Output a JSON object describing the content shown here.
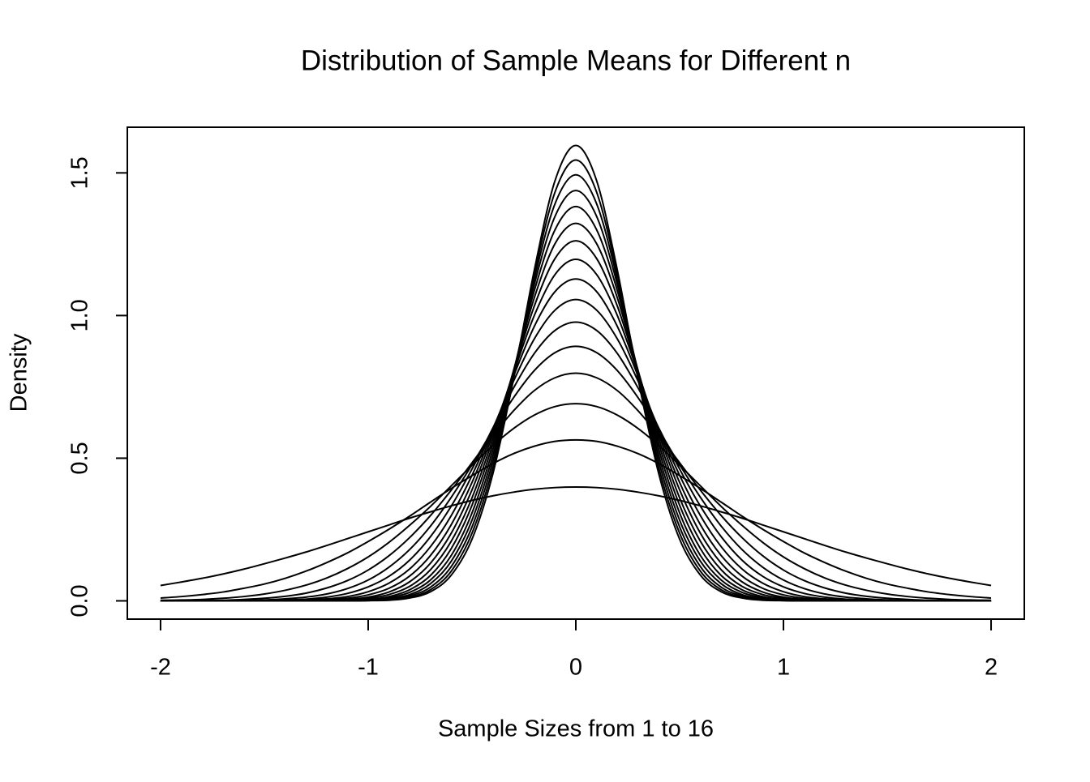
{
  "chart_data": {
    "type": "line",
    "title": "Distribution of Sample Means for Different n",
    "xlabel": "Sample Sizes from 1 to 16",
    "ylabel": "Density",
    "color": "#000000",
    "xlim": [
      -2.16,
      2.16
    ],
    "ylim": [
      -0.064,
      1.66
    ],
    "xticks": [
      -2,
      -1,
      0,
      1,
      2
    ],
    "yticks": [
      {
        "value": 0,
        "label": "0.0"
      },
      0.5,
      {
        "value": 1,
        "label": "1.0"
      },
      1.5
    ],
    "x": [
      -2,
      -1.9,
      -1.8,
      -1.7,
      -1.6,
      -1.5,
      -1.4,
      -1.3,
      -1.2,
      -1.1,
      -1,
      -0.9,
      -0.8,
      -0.7,
      -0.6,
      -0.5,
      -0.4,
      -0.3,
      -0.2,
      -0.1,
      0,
      0.1,
      0.2,
      0.3,
      0.4,
      0.5,
      0.6,
      0.7,
      0.8,
      0.9,
      1,
      1.1,
      1.2,
      1.3,
      1.4,
      1.5,
      1.6,
      1.7,
      1.8,
      1.9,
      2
    ],
    "series": [
      {
        "values": [
          0.054,
          0.066,
          0.079,
          0.094,
          0.111,
          0.13,
          0.15,
          0.171,
          0.194,
          0.218,
          0.242,
          0.266,
          0.29,
          0.312,
          0.333,
          0.352,
          0.368,
          0.381,
          0.391,
          0.397,
          0.399,
          0.397,
          0.391,
          0.381,
          0.368,
          0.352,
          0.333,
          0.312,
          0.29,
          0.266,
          0.242,
          0.218,
          0.194,
          0.171,
          0.15,
          0.13,
          0.111,
          0.094,
          0.079,
          0.066,
          0.054
        ]
      },
      {
        "values": [
          0.01,
          0.015,
          0.022,
          0.031,
          0.044,
          0.059,
          0.079,
          0.104,
          0.134,
          0.168,
          0.208,
          0.251,
          0.297,
          0.346,
          0.394,
          0.439,
          0.481,
          0.516,
          0.542,
          0.559,
          0.564,
          0.559,
          0.542,
          0.516,
          0.481,
          0.439,
          0.394,
          0.346,
          0.297,
          0.251,
          0.208,
          0.168,
          0.134,
          0.104,
          0.079,
          0.059,
          0.044,
          0.031,
          0.022,
          0.015,
          0.01
        ]
      },
      {
        "values": [
          0.002,
          0.003,
          0.005,
          0.009,
          0.015,
          0.024,
          0.037,
          0.055,
          0.08,
          0.113,
          0.154,
          0.205,
          0.265,
          0.331,
          0.403,
          0.475,
          0.544,
          0.604,
          0.651,
          0.681,
          0.691,
          0.681,
          0.651,
          0.604,
          0.544,
          0.475,
          0.403,
          0.331,
          0.265,
          0.205,
          0.154,
          0.113,
          0.08,
          0.055,
          0.037,
          0.024,
          0.015,
          0.009,
          0.005,
          0.003,
          0.002
        ]
      },
      {
        "values": [
          0,
          0.001,
          0.001,
          0.002,
          0.005,
          0.009,
          0.016,
          0.027,
          0.045,
          0.071,
          0.108,
          0.158,
          0.222,
          0.299,
          0.388,
          0.484,
          0.579,
          0.666,
          0.737,
          0.782,
          0.798,
          0.782,
          0.737,
          0.666,
          0.579,
          0.484,
          0.388,
          0.299,
          0.222,
          0.158,
          0.108,
          0.071,
          0.045,
          0.027,
          0.016,
          0.009,
          0.005,
          0.002,
          0.001,
          0.001,
          0
        ]
      },
      {
        "values": [
          0,
          0,
          0,
          0.001,
          0.001,
          0.003,
          0.007,
          0.013,
          0.024,
          0.043,
          0.073,
          0.118,
          0.18,
          0.262,
          0.363,
          0.477,
          0.598,
          0.712,
          0.807,
          0.87,
          0.892,
          0.87,
          0.807,
          0.712,
          0.598,
          0.477,
          0.363,
          0.262,
          0.18,
          0.118,
          0.073,
          0.043,
          0.024,
          0.013,
          0.007,
          0.003,
          0.001,
          0.001,
          0,
          0,
          0
        ]
      },
      {
        "values": [
          0,
          0,
          0,
          0,
          0,
          0.001,
          0.003,
          0.006,
          0.013,
          0.026,
          0.049,
          0.086,
          0.143,
          0.225,
          0.332,
          0.462,
          0.605,
          0.746,
          0.867,
          0.948,
          0.977,
          0.948,
          0.867,
          0.746,
          0.605,
          0.462,
          0.332,
          0.225,
          0.143,
          0.086,
          0.049,
          0.026,
          0.013,
          0.006,
          0.003,
          0.001,
          0,
          0,
          0,
          0,
          0
        ]
      },
      {
        "values": [
          0,
          0,
          0,
          0,
          0,
          0,
          0.001,
          0.003,
          0.007,
          0.015,
          0.032,
          0.062,
          0.112,
          0.19,
          0.299,
          0.44,
          0.603,
          0.77,
          0.918,
          1.019,
          1.056,
          1.019,
          0.918,
          0.77,
          0.603,
          0.44,
          0.299,
          0.19,
          0.112,
          0.062,
          0.032,
          0.015,
          0.007,
          0.003,
          0.001,
          0,
          0,
          0,
          0,
          0,
          0
        ]
      },
      {
        "values": [
          0,
          0,
          0,
          0,
          0,
          0,
          0,
          0.001,
          0.004,
          0.009,
          0.021,
          0.044,
          0.087,
          0.159,
          0.267,
          0.415,
          0.595,
          0.787,
          0.962,
          1.084,
          1.128,
          1.084,
          0.962,
          0.787,
          0.595,
          0.415,
          0.267,
          0.159,
          0.087,
          0.044,
          0.021,
          0.009,
          0.004,
          0.001,
          0,
          0,
          0,
          0,
          0,
          0,
          0
        ]
      },
      {
        "values": [
          0,
          0,
          0,
          0,
          0,
          0,
          0,
          0.001,
          0.002,
          0.005,
          0.013,
          0.031,
          0.067,
          0.132,
          0.237,
          0.389,
          0.583,
          0.798,
          1.0,
          1.144,
          1.197,
          1.144,
          1.0,
          0.798,
          0.583,
          0.389,
          0.237,
          0.132,
          0.067,
          0.031,
          0.013,
          0.005,
          0.002,
          0.001,
          0,
          0,
          0,
          0,
          0,
          0,
          0
        ]
      },
      {
        "values": [
          0,
          0,
          0,
          0,
          0,
          0,
          0,
          0,
          0.001,
          0.003,
          0.009,
          0.022,
          0.051,
          0.109,
          0.209,
          0.361,
          0.567,
          0.804,
          1.033,
          1.2,
          1.262,
          1.2,
          1.033,
          0.804,
          0.567,
          0.361,
          0.209,
          0.109,
          0.051,
          0.022,
          0.009,
          0.003,
          0.001,
          0,
          0,
          0,
          0,
          0,
          0,
          0,
          0
        ]
      },
      {
        "values": [
          0,
          0,
          0,
          0,
          0,
          0,
          0,
          0,
          0,
          0.002,
          0.005,
          0.015,
          0.039,
          0.089,
          0.183,
          0.335,
          0.549,
          0.807,
          1.062,
          1.252,
          1.323,
          1.252,
          1.062,
          0.807,
          0.549,
          0.335,
          0.183,
          0.089,
          0.039,
          0.015,
          0.005,
          0.002,
          0,
          0,
          0,
          0,
          0,
          0,
          0,
          0,
          0
        ]
      },
      {
        "values": [
          0,
          0,
          0,
          0,
          0,
          0,
          0,
          0,
          0,
          0.001,
          0.003,
          0.011,
          0.03,
          0.073,
          0.159,
          0.308,
          0.529,
          0.805,
          1.087,
          1.301,
          1.382,
          1.301,
          1.087,
          0.805,
          0.529,
          0.308,
          0.159,
          0.073,
          0.03,
          0.011,
          0.003,
          0.001,
          0,
          0,
          0,
          0,
          0,
          0,
          0,
          0,
          0
        ]
      },
      {
        "values": [
          0,
          0,
          0,
          0,
          0,
          0,
          0,
          0,
          0,
          0.001,
          0.002,
          0.007,
          0.022,
          0.06,
          0.139,
          0.283,
          0.508,
          0.801,
          1.109,
          1.348,
          1.438,
          1.348,
          1.109,
          0.801,
          0.508,
          0.283,
          0.139,
          0.06,
          0.022,
          0.007,
          0.002,
          0.001,
          0,
          0,
          0,
          0,
          0,
          0,
          0,
          0,
          0
        ]
      },
      {
        "values": [
          0,
          0,
          0,
          0,
          0,
          0,
          0,
          0,
          0,
          0,
          0.001,
          0.005,
          0.017,
          0.048,
          0.12,
          0.259,
          0.487,
          0.795,
          1.128,
          1.392,
          1.493,
          1.392,
          1.128,
          0.795,
          0.487,
          0.259,
          0.12,
          0.048,
          0.017,
          0.005,
          0.001,
          0,
          0,
          0,
          0,
          0,
          0,
          0,
          0,
          0,
          0
        ]
      },
      {
        "values": [
          0,
          0,
          0,
          0,
          0,
          0,
          0,
          0,
          0,
          0,
          0.001,
          0.004,
          0.013,
          0.039,
          0.104,
          0.237,
          0.465,
          0.787,
          1.145,
          1.433,
          1.545,
          1.433,
          1.145,
          0.787,
          0.465,
          0.237,
          0.104,
          0.039,
          0.013,
          0.004,
          0.001,
          0,
          0,
          0,
          0,
          0,
          0,
          0,
          0,
          0,
          0
        ]
      },
      {
        "values": [
          0,
          0,
          0,
          0,
          0,
          0,
          0,
          0,
          0,
          0,
          0.001,
          0.002,
          0.01,
          0.032,
          0.09,
          0.216,
          0.444,
          0.777,
          1.159,
          1.473,
          1.596,
          1.473,
          1.159,
          0.777,
          0.444,
          0.216,
          0.09,
          0.032,
          0.01,
          0.002,
          0.001,
          0,
          0,
          0,
          0,
          0,
          0,
          0,
          0,
          0,
          0
        ]
      }
    ]
  }
}
